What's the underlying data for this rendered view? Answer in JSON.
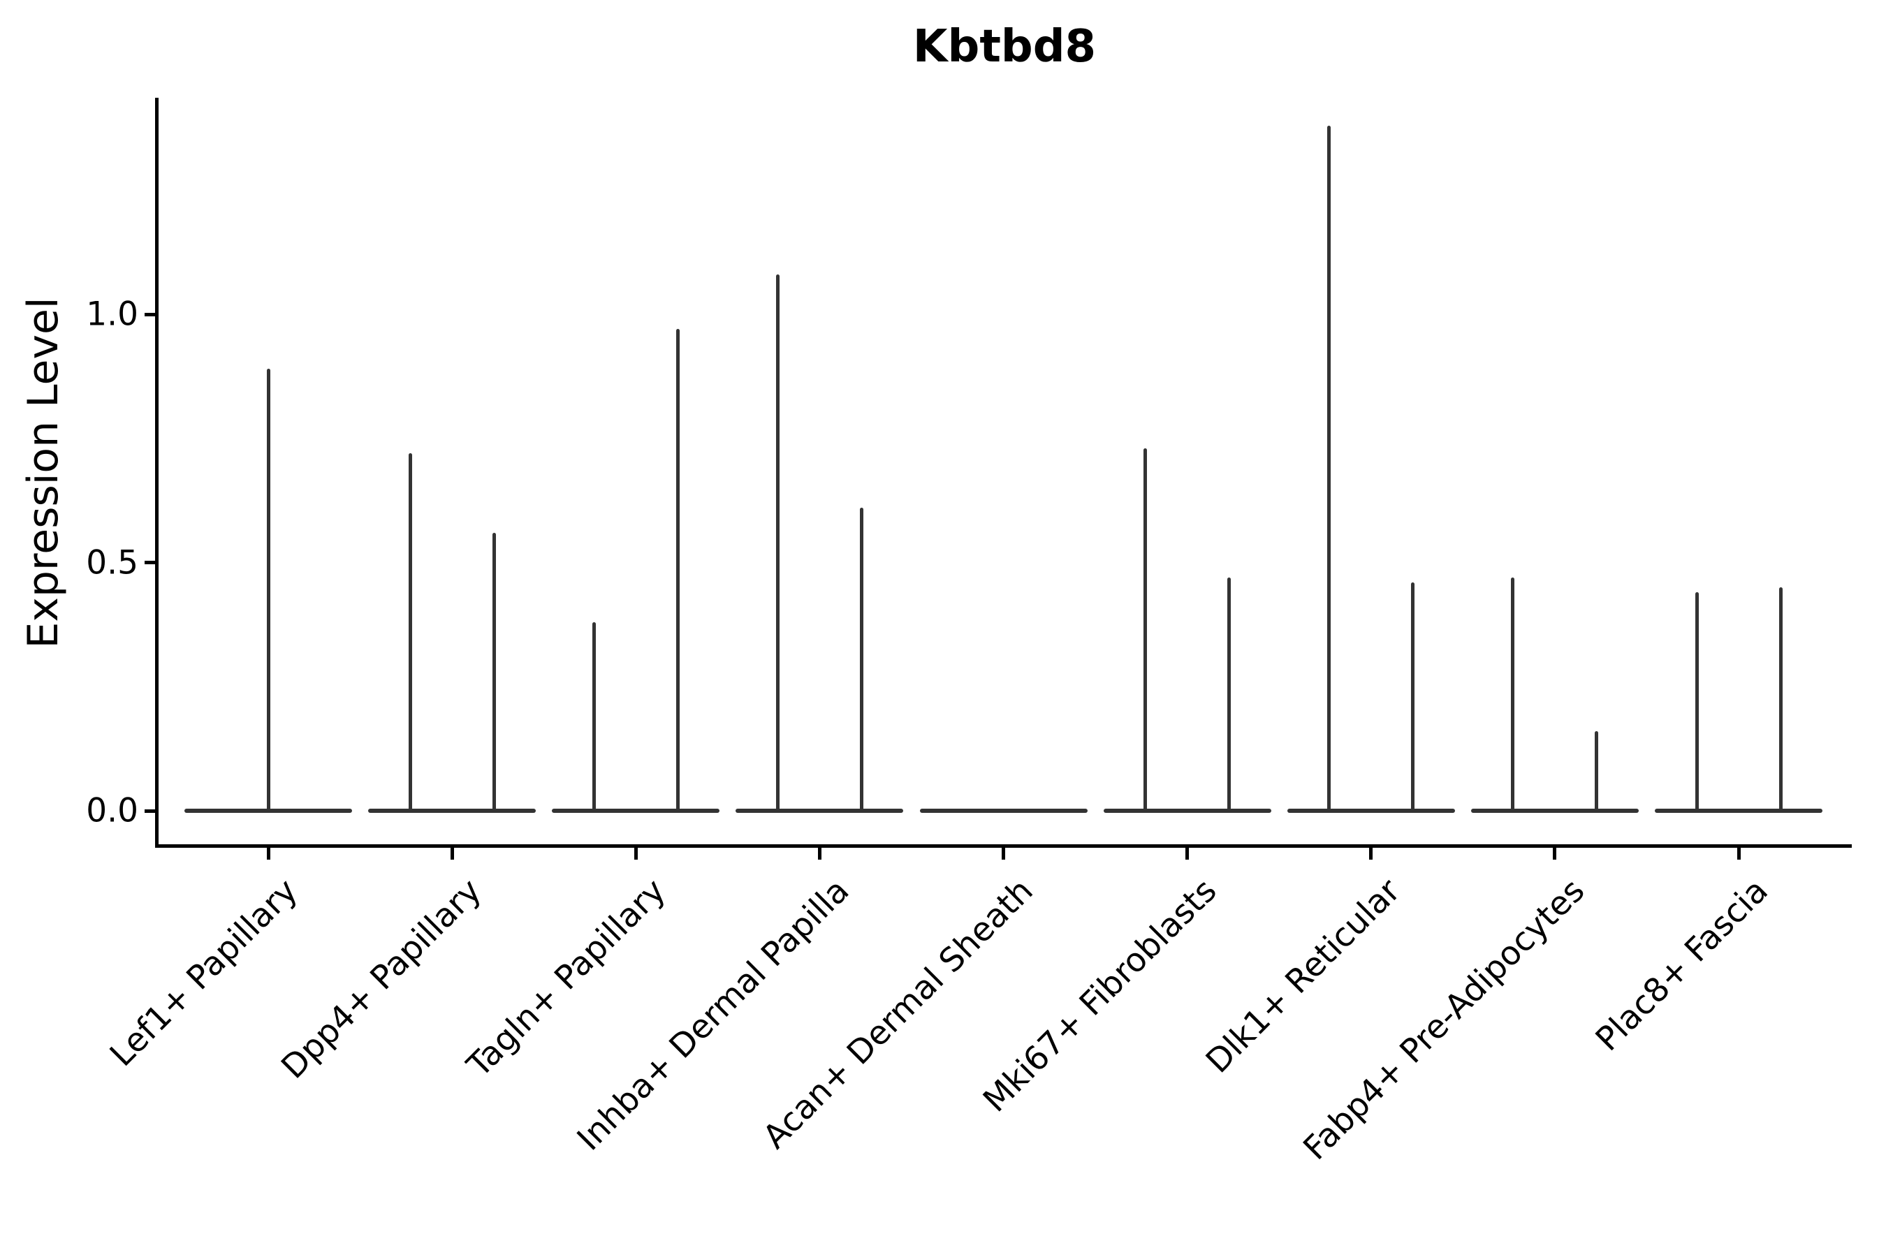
{
  "title": "Kbtbd8",
  "y_axis": {
    "label": "Expression Level",
    "ticks": [
      {
        "label": "0.0",
        "value": 0.0
      },
      {
        "label": "0.5",
        "value": 0.5
      },
      {
        "label": "1.0",
        "value": 1.0
      }
    ]
  },
  "chart_data": {
    "type": "violin",
    "title": "Kbtbd8",
    "xlabel": "",
    "ylabel": "Expression Level",
    "ylim": [
      -0.07,
      1.44
    ],
    "yticks": [
      0.0,
      0.5,
      1.0
    ],
    "grid": false,
    "legend": "none",
    "description": "Seurat-style single-gene violin plot; expression is sparse so each violin collapses to a flat base at 0 with a hairline spike up to the maximum expression value. Categories with two spikes contain two side-by-side violins; Lef1+ Papillary has one full-width centered violin; Acan+ Dermal Sheath is entirely flat at 0.",
    "categories": [
      "Lef1+ Papillary",
      "Dpp4+ Papillary",
      "Tagln+ Papillary",
      "Inhba+ Dermal Papilla",
      "Acan+ Dermal Sheath",
      "Mki67+ Fibroblasts",
      "Dlk1+ Reticular",
      "Fabp4+ Pre-Adipocytes",
      "Plac8+ Fascia"
    ],
    "violins": [
      {
        "category": "Lef1+ Papillary",
        "baseline_at": 0.0,
        "groups": [
          {
            "position": "center",
            "max": 0.89
          }
        ]
      },
      {
        "category": "Dpp4+ Papillary",
        "baseline_at": 0.0,
        "groups": [
          {
            "position": "left",
            "max": 0.72
          },
          {
            "position": "right",
            "max": 0.56
          }
        ]
      },
      {
        "category": "Tagln+ Papillary",
        "baseline_at": 0.0,
        "groups": [
          {
            "position": "left",
            "max": 0.38
          },
          {
            "position": "right",
            "max": 0.97
          }
        ]
      },
      {
        "category": "Inhba+ Dermal Papilla",
        "baseline_at": 0.0,
        "groups": [
          {
            "position": "left",
            "max": 1.08
          },
          {
            "position": "right",
            "max": 0.61
          }
        ]
      },
      {
        "category": "Acan+ Dermal Sheath",
        "baseline_at": 0.0,
        "groups": []
      },
      {
        "category": "Mki67+ Fibroblasts",
        "baseline_at": 0.0,
        "groups": [
          {
            "position": "left",
            "max": 0.73
          },
          {
            "position": "right",
            "max": 0.47
          }
        ]
      },
      {
        "category": "Dlk1+ Reticular",
        "baseline_at": 0.0,
        "groups": [
          {
            "position": "left",
            "max": 1.38
          },
          {
            "position": "right",
            "max": 0.46
          }
        ]
      },
      {
        "category": "Fabp4+ Pre-Adipocytes",
        "baseline_at": 0.0,
        "groups": [
          {
            "position": "left",
            "max": 0.47
          },
          {
            "position": "right",
            "max": 0.16
          }
        ]
      },
      {
        "category": "Plac8+ Fascia",
        "baseline_at": 0.0,
        "groups": [
          {
            "position": "left",
            "max": 0.44
          },
          {
            "position": "right",
            "max": 0.45
          }
        ]
      }
    ],
    "colors": {
      "violin": "#333333",
      "axis": "#000000",
      "text": "#000000",
      "background": "#ffffff"
    }
  }
}
